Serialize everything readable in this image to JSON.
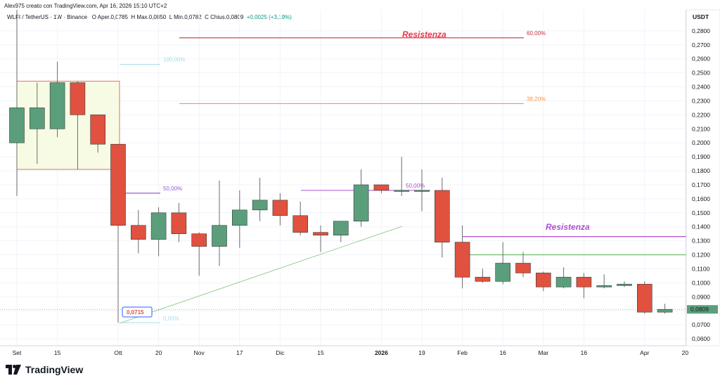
{
  "header": {
    "author_line": "Alex975 creato con TradingView.com, Apr 16, 2026 15:10 UTC+2",
    "symbol": "WLFI / TetherUS · 1W · Binance",
    "o_label": "O",
    "open": "Aper.0,0785",
    "h_label": "H",
    "high": "Max.0,0850",
    "l_label": "L",
    "low": "Min.0,0782",
    "c_label": "C",
    "close": "Chius.0,0809",
    "change": "+0,0025 (+3,19%)"
  },
  "currency": "USDT",
  "last_price": "0,0809",
  "brand": "TradingView",
  "colors": {
    "up": "#5b9e7c",
    "down": "#e0513f",
    "grid": "#f0f3fa",
    "resistance_red": "#e63950",
    "resistance_purple": "#b04fcf",
    "fib60": "#c2343f",
    "fib38": "#f2994a",
    "fib100": "#a8dce8",
    "fib50": "#8e5fd6",
    "trend": "#7cc47c",
    "support_green": "#5fb85f"
  },
  "annotations": {
    "resistance_top": "Resistenza",
    "resistance_mid": "Resistenza",
    "fib_60": "60,00%",
    "fib_38": "38,20%",
    "fib_100": "100,00%",
    "fib_50a": "50,00%",
    "fib_50b": "50,00%",
    "fib_0": "0,00%",
    "low_callout": "0,0715"
  },
  "chart_data": {
    "type": "candlestick",
    "title": "",
    "xlabel": "",
    "ylabel": "",
    "ylim": [
      0.055,
      0.295
    ],
    "y_ticks": [
      "0,2800",
      "0,2700",
      "0,2600",
      "0,2500",
      "0,2400",
      "0,2300",
      "0,2200",
      "0,2100",
      "0,2000",
      "0,1900",
      "0,1800",
      "0,1700",
      "0,1600",
      "0,1500",
      "0,1400",
      "0,1300",
      "0,1200",
      "0,1100",
      "0,1000",
      "0,0900",
      "0,0800",
      "0,0700",
      "0,0600"
    ],
    "y_tick_values": [
      0.28,
      0.27,
      0.26,
      0.25,
      0.24,
      0.23,
      0.22,
      0.21,
      0.2,
      0.19,
      0.18,
      0.17,
      0.16,
      0.15,
      0.14,
      0.13,
      0.12,
      0.11,
      0.1,
      0.09,
      0.08,
      0.07,
      0.06
    ],
    "x_ticks": [
      {
        "label": "Set",
        "i": 0
      },
      {
        "label": "15",
        "i": 2
      },
      {
        "label": "Ott",
        "i": 5
      },
      {
        "label": "20",
        "i": 7
      },
      {
        "label": "Nov",
        "i": 9
      },
      {
        "label": "17",
        "i": 11
      },
      {
        "label": "Dic",
        "i": 13
      },
      {
        "label": "15",
        "i": 15
      },
      {
        "label": "2026",
        "i": 18,
        "bold": true
      },
      {
        "label": "19",
        "i": 20
      },
      {
        "label": "Feb",
        "i": 22
      },
      {
        "label": "16",
        "i": 24
      },
      {
        "label": "Mar",
        "i": 26
      },
      {
        "label": "16",
        "i": 28
      },
      {
        "label": "Apr",
        "i": 31
      },
      {
        "label": "20",
        "i": 33
      }
    ],
    "candles": [
      {
        "o": 0.2,
        "h": 0.295,
        "l": 0.162,
        "c": 0.225
      },
      {
        "o": 0.21,
        "h": 0.243,
        "l": 0.185,
        "c": 0.225
      },
      {
        "o": 0.21,
        "h": 0.258,
        "l": 0.204,
        "c": 0.243
      },
      {
        "o": 0.243,
        "h": 0.244,
        "l": 0.181,
        "c": 0.22
      },
      {
        "o": 0.22,
        "h": 0.22,
        "l": 0.193,
        "c": 0.199
      },
      {
        "o": 0.199,
        "h": 0.199,
        "l": 0.0715,
        "c": 0.141
      },
      {
        "o": 0.141,
        "h": 0.152,
        "l": 0.121,
        "c": 0.131
      },
      {
        "o": 0.131,
        "h": 0.154,
        "l": 0.119,
        "c": 0.15
      },
      {
        "o": 0.15,
        "h": 0.157,
        "l": 0.129,
        "c": 0.135
      },
      {
        "o": 0.135,
        "h": 0.136,
        "l": 0.105,
        "c": 0.126
      },
      {
        "o": 0.126,
        "h": 0.173,
        "l": 0.112,
        "c": 0.141
      },
      {
        "o": 0.141,
        "h": 0.166,
        "l": 0.125,
        "c": 0.152
      },
      {
        "o": 0.152,
        "h": 0.175,
        "l": 0.144,
        "c": 0.159
      },
      {
        "o": 0.159,
        "h": 0.164,
        "l": 0.141,
        "c": 0.148
      },
      {
        "o": 0.148,
        "h": 0.158,
        "l": 0.134,
        "c": 0.136
      },
      {
        "o": 0.136,
        "h": 0.141,
        "l": 0.122,
        "c": 0.134
      },
      {
        "o": 0.134,
        "h": 0.144,
        "l": 0.129,
        "c": 0.144
      },
      {
        "o": 0.144,
        "h": 0.181,
        "l": 0.14,
        "c": 0.17
      },
      {
        "o": 0.17,
        "h": 0.17,
        "l": 0.164,
        "c": 0.166
      },
      {
        "o": 0.166,
        "h": 0.19,
        "l": 0.162,
        "c": 0.166
      },
      {
        "o": 0.166,
        "h": 0.181,
        "l": 0.151,
        "c": 0.166
      },
      {
        "o": 0.166,
        "h": 0.175,
        "l": 0.118,
        "c": 0.129
      },
      {
        "o": 0.129,
        "h": 0.141,
        "l": 0.096,
        "c": 0.104
      },
      {
        "o": 0.104,
        "h": 0.11,
        "l": 0.1,
        "c": 0.101
      },
      {
        "o": 0.101,
        "h": 0.129,
        "l": 0.099,
        "c": 0.114
      },
      {
        "o": 0.114,
        "h": 0.122,
        "l": 0.104,
        "c": 0.107
      },
      {
        "o": 0.107,
        "h": 0.108,
        "l": 0.094,
        "c": 0.097
      },
      {
        "o": 0.097,
        "h": 0.111,
        "l": 0.096,
        "c": 0.104
      },
      {
        "o": 0.104,
        "h": 0.107,
        "l": 0.089,
        "c": 0.097
      },
      {
        "o": 0.097,
        "h": 0.106,
        "l": 0.096,
        "c": 0.098
      },
      {
        "o": 0.098,
        "h": 0.101,
        "l": 0.097,
        "c": 0.099
      },
      {
        "o": 0.099,
        "h": 0.101,
        "l": 0.078,
        "c": 0.079
      },
      {
        "o": 0.079,
        "h": 0.085,
        "l": 0.078,
        "c": 0.081
      }
    ],
    "levels": {
      "fib_60": 0.275,
      "fib_38": 0.228,
      "fib_100": 0.256,
      "fib_50a": 0.164,
      "fib_50b": 0.166,
      "fib_0": 0.0715,
      "support_green": 0.12,
      "resistance_purple": 0.133,
      "box_top": 0.244,
      "box_bottom": 0.181
    }
  }
}
